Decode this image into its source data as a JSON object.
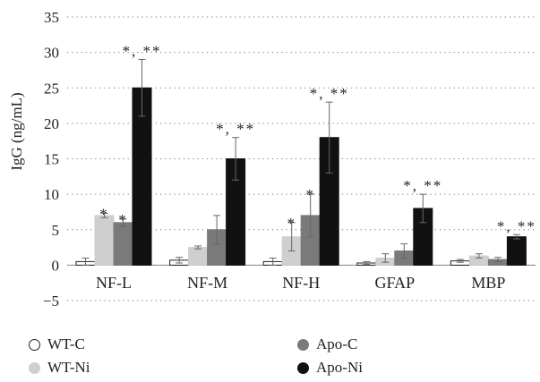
{
  "chart_data": {
    "type": "bar",
    "ylabel": "IgG (ng/mL)",
    "ylim": [
      -5,
      35
    ],
    "yticks": [
      "−5",
      "0",
      "5",
      "10",
      "15",
      "20",
      "25",
      "30",
      "35"
    ],
    "ytick_values": [
      -5,
      0,
      5,
      10,
      15,
      20,
      25,
      30,
      35
    ],
    "grid": "dotted horizontal",
    "legend_position": "bottom",
    "categories": [
      "NF-L",
      "NF-M",
      "NF-H",
      "GFAP",
      "MBP"
    ],
    "series": [
      {
        "name": "WT-C",
        "color": "#ffffff",
        "stroke": "#222222",
        "values": [
          0.5,
          0.7,
          0.5,
          0.3,
          0.6
        ],
        "errors": [
          0.5,
          0.4,
          0.5,
          0.2,
          0.2
        ],
        "annotations": [
          "",
          "",
          "",
          "",
          ""
        ]
      },
      {
        "name": "WT-Ni",
        "color": "#cfcfcf",
        "stroke": "#cfcfcf",
        "values": [
          7.0,
          2.5,
          4.0,
          1.0,
          1.3
        ],
        "errors": [
          0.3,
          0.2,
          2.0,
          0.6,
          0.3
        ],
        "annotations": [
          "*",
          "",
          "*",
          "",
          ""
        ]
      },
      {
        "name": "Apo-C",
        "color": "#7a7a7a",
        "stroke": "#7a7a7a",
        "values": [
          6.0,
          5.0,
          7.0,
          2.0,
          0.8
        ],
        "errors": [
          0.5,
          2.0,
          3.0,
          1.0,
          0.3
        ],
        "annotations": [
          "*",
          "",
          "*",
          "",
          ""
        ]
      },
      {
        "name": "Apo-Ni",
        "color": "#111111",
        "stroke": "#111111",
        "values": [
          25.0,
          15.0,
          18.0,
          8.0,
          4.0
        ],
        "errors": [
          4.0,
          3.0,
          5.0,
          2.0,
          0.3
        ],
        "annotations": [
          "*, **",
          "*, **",
          "*, **",
          "*, **",
          "*, **"
        ]
      }
    ]
  }
}
